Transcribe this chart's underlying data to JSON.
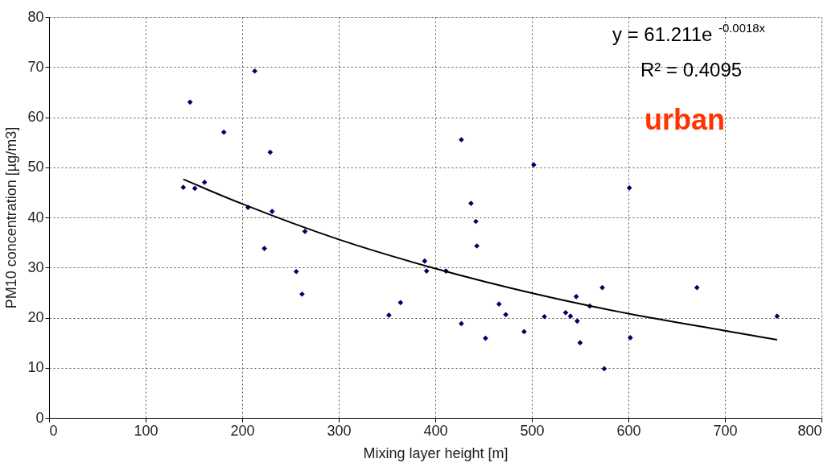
{
  "chart_data": {
    "type": "scatter",
    "xlabel": "Mixing layer height [m]",
    "ylabel": "PM10 concentration [µg/m3]",
    "xlim": [
      0,
      800
    ],
    "xticks": [
      0,
      100,
      200,
      300,
      400,
      500,
      600,
      700,
      800
    ],
    "ylim": [
      0,
      80
    ],
    "yticks": [
      0,
      10,
      20,
      30,
      40,
      50,
      60,
      70,
      80
    ],
    "grid": true,
    "marker": "diamond",
    "annotations": [
      "y = 61.211e$^{-0.0018x}$",
      "R² = 0.4095",
      "urban"
    ],
    "series": [
      {
        "color": "#000066",
        "x": [
          139,
          146,
          151,
          161,
          181,
          206,
          213,
          223,
          229,
          231,
          256,
          262,
          265,
          352,
          364,
          389,
          391,
          411,
          427,
          427,
          437,
          442,
          443,
          452,
          466,
          473,
          492,
          502,
          513,
          535,
          540,
          546,
          547,
          550,
          560,
          573,
          575,
          601,
          602,
          671,
          754
        ],
        "values": [
          46,
          63,
          45.8,
          47,
          57,
          42,
          69.2,
          33.8,
          53,
          41.2,
          29.2,
          24.7,
          37.2,
          20.5,
          23,
          31.3,
          29.3,
          29.3,
          18.8,
          55.5,
          42.8,
          39.2,
          34.3,
          15.9,
          22.7,
          20.6,
          17.2,
          50.5,
          20.2,
          21,
          20.3,
          24.2,
          19.3,
          15,
          22.3,
          26,
          9.8,
          45.9,
          16,
          26,
          20.3
        ]
      },
      {
        "type": "line",
        "color": "#000000",
        "marker": "none",
        "x": [
          139,
          200,
          300,
          400,
          500,
          600,
          700,
          754
        ],
        "values": [
          47.6,
          42.7,
          35.6,
          29.8,
          24.9,
          20.8,
          17.4,
          15.6
        ]
      }
    ]
  }
}
